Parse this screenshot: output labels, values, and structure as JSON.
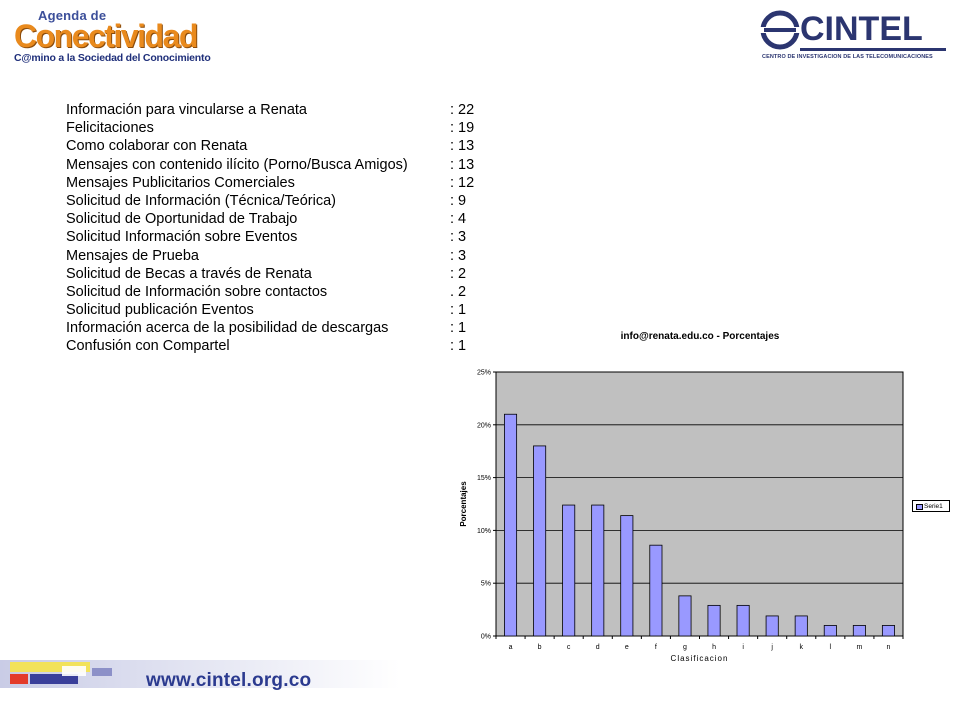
{
  "header": {
    "left_logo": {
      "line1": "Agenda de",
      "line2": "Conectividad",
      "line3": "C@mino a la Sociedad del Conocimiento"
    },
    "right_logo": {
      "brand": "CINTEL",
      "subtitle": "CENTRO DE INVESTIGACION DE LAS TELECOMUNICACIONES"
    }
  },
  "categories": [
    {
      "label": "Información para vincularse a Renata",
      "count": ": 22"
    },
    {
      "label": "Felicitaciones",
      "count": ": 19"
    },
    {
      "label": "Como colaborar con Renata",
      "count": ": 13"
    },
    {
      "label": "Mensajes con contenido ilícito (Porno/Busca Amigos)",
      "count": ": 13"
    },
    {
      "label": "Mensajes Publicitarios Comerciales",
      "count": ": 12"
    },
    {
      "label": "Solicitud de Información (Técnica/Teórica)",
      "count": ": 9"
    },
    {
      "label": "Solicitud de Oportunidad de Trabajo",
      "count": ": 4"
    },
    {
      "label": "Solicitud Información sobre Eventos",
      "count": ": 3"
    },
    {
      "label": "Mensajes de Prueba",
      "count": ": 3"
    },
    {
      "label": "Solicitud de Becas a través de Renata",
      "count": ": 2"
    },
    {
      "label": "Solicitud de Información sobre contactos",
      "count": ". 2"
    },
    {
      "label": "Solicitud publicación Eventos",
      "count": ": 1"
    },
    {
      "label": "Información acerca de la posibilidad de descargas",
      "count": ": 1"
    },
    {
      "label": "Confusión con Compartel",
      "count": ": 1"
    }
  ],
  "chart_data": {
    "type": "bar",
    "title": "info@renata.edu.co - Porcentajes",
    "xlabel": "Clasificacion",
    "ylabel": "Porcentajes",
    "categories": [
      "a",
      "b",
      "c",
      "d",
      "e",
      "f",
      "g",
      "h",
      "i",
      "j",
      "k",
      "l",
      "m",
      "n"
    ],
    "series": [
      {
        "name": "Serie1",
        "values": [
          21,
          18,
          12.4,
          12.4,
          11.4,
          8.6,
          3.8,
          2.9,
          2.9,
          1.9,
          1.9,
          1,
          1,
          1
        ]
      }
    ],
    "ylim": [
      0,
      25
    ],
    "yticks": [
      "0%",
      "5%",
      "10%",
      "15%",
      "20%",
      "25%"
    ],
    "ytick_values": [
      0,
      5,
      10,
      15,
      20,
      25
    ],
    "grid": true,
    "legend": "right",
    "colors": {
      "bar": "#9999ff",
      "plot_bg": "#c0c0c0",
      "grid": "#000000"
    }
  },
  "footer": {
    "url": "www.cintel.org.co"
  }
}
